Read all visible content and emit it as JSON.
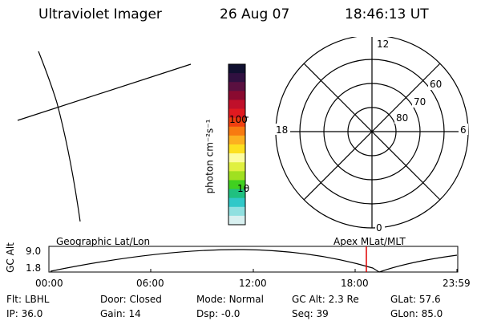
{
  "header": {
    "instrument": "Ultraviolet Imager",
    "date": "26 Aug 07",
    "time": "18:46:13 UT"
  },
  "colorbar": {
    "unit_label": "photon cm⁻²s⁻¹",
    "ticks": [
      {
        "label": "100",
        "value": 100
      },
      {
        "label": "10",
        "value": 10
      }
    ],
    "colors": [
      "#101030",
      "#301040",
      "#5a1040",
      "#8a0a30",
      "#c0102a",
      "#e01a20",
      "#f04010",
      "#f87a10",
      "#fcb020",
      "#fce020",
      "#fcfca0",
      "#e0f040",
      "#a0e020",
      "#40d020",
      "#20c080",
      "#30c8c8",
      "#90e0e0",
      "#d8f0f0"
    ]
  },
  "polar_plot": {
    "clock_labels": {
      "top": "12",
      "left": "18",
      "right": "6",
      "bottom": "0"
    },
    "lat_labels": [
      "60",
      "70",
      "80"
    ]
  },
  "timeline": {
    "left_label": "Geographic Lat/Lon",
    "right_label": "Apex MLat/MLT",
    "axis_label": "GC Alt",
    "y_ticks": [
      "9.0",
      "1.8"
    ],
    "x_ticks": [
      "00:00",
      "06:00",
      "12:00",
      "18:00",
      "23:59"
    ],
    "current_time_marker": "18:46",
    "marker_color": "#e00000"
  },
  "status": {
    "row1": [
      {
        "key": "Flt:",
        "val": "LBHL"
      },
      {
        "key": "Door:",
        "val": "Closed"
      },
      {
        "key": "Mode:",
        "val": "Normal"
      },
      {
        "key": "GC Alt:",
        "val": "2.3 Re"
      },
      {
        "key": "GLat:",
        "val": "57.6"
      }
    ],
    "row2": [
      {
        "key": "IP:",
        "val": "36.0"
      },
      {
        "key": "Gain:",
        "val": "14"
      },
      {
        "key": "Dsp:",
        "val": "-0.0"
      },
      {
        "key": "Seq:",
        "val": "39"
      },
      {
        "key": "GLon:",
        "val": "85.0"
      }
    ]
  }
}
